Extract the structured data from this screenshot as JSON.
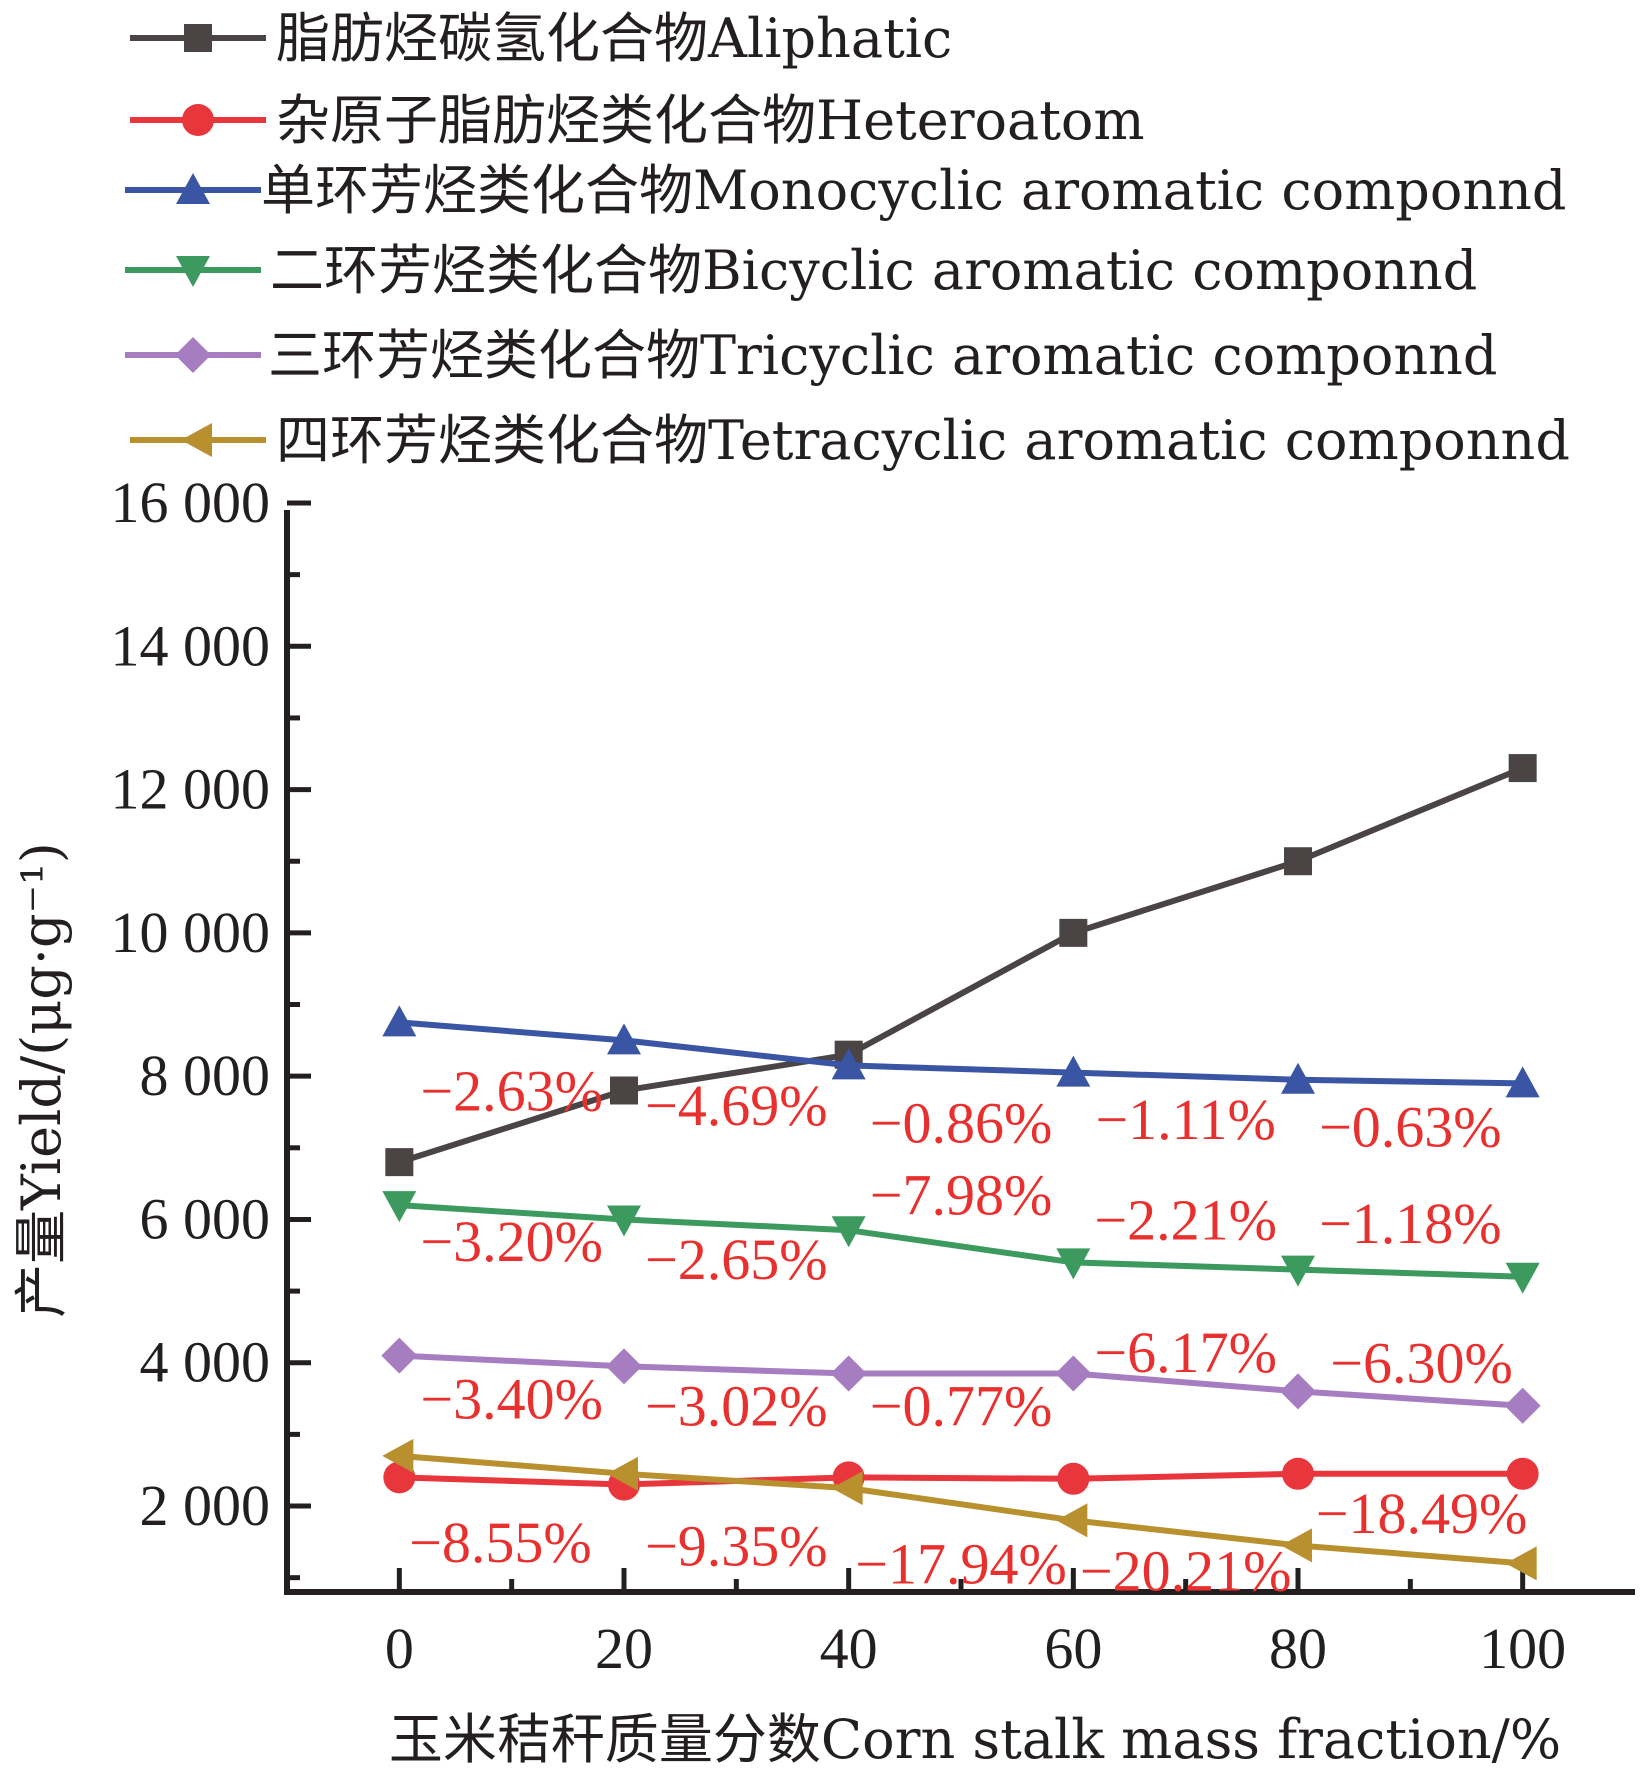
{
  "chart_data": {
    "type": "line",
    "title": "",
    "xlabel": "玉米秸秆质量分数Corn stalk mass fraction/%",
    "ylabel": "产量Yield/(μg·g⁻¹)",
    "x": [
      0,
      20,
      40,
      60,
      80,
      100
    ],
    "x_tick_labels": [
      "0",
      "20",
      "40",
      "60",
      "80",
      "100"
    ],
    "y_ticks": [
      2000,
      4000,
      6000,
      8000,
      10000,
      12000,
      14000,
      16000
    ],
    "y_tick_labels": [
      "2 000",
      "4 000",
      "6 000",
      "8 000",
      "10 000",
      "12 000",
      "14 000",
      "16 000"
    ],
    "xlim": [
      -10,
      110
    ],
    "ylim": [
      800,
      16000
    ],
    "legend_position": "top",
    "series": [
      {
        "name": "脂肪烃碳氢化合物Aliphatic",
        "color": "#4a4444",
        "marker": "square",
        "values": [
          6800,
          7800,
          8300,
          10000,
          11000,
          12300
        ]
      },
      {
        "name": "杂原子脂肪烃类化合物Heteroatom",
        "color": "#e8363c",
        "marker": "circle",
        "values": [
          2400,
          2300,
          2400,
          2380,
          2450,
          2450
        ]
      },
      {
        "name": "单环芳烃类化合物Monocyclic aromatic componnd",
        "color": "#3a55a4",
        "marker": "triangle-up",
        "values": [
          8750,
          8500,
          8150,
          8050,
          7950,
          7900
        ]
      },
      {
        "name": "二环芳烃类化合物Bicyclic aromatic componnd",
        "color": "#3c9a5f",
        "marker": "triangle-down",
        "values": [
          6200,
          6000,
          5850,
          5400,
          5300,
          5200
        ]
      },
      {
        "name": "三环芳烃类化合物Tricyclic aromatic componnd",
        "color": "#a77dc2",
        "marker": "diamond",
        "values": [
          4100,
          3950,
          3850,
          3850,
          3600,
          3400
        ]
      },
      {
        "name": "四环芳烃类化合物Tetracyclic aromatic componnd",
        "color": "#b8902e",
        "marker": "triangle-left",
        "values": [
          2700,
          2450,
          2250,
          1800,
          1450,
          1200
        ]
      }
    ],
    "annotations": [
      {
        "text": "−2.63%",
        "x": 10,
        "y": 7800
      },
      {
        "text": "−4.69%",
        "x": 30,
        "y": 7600
      },
      {
        "text": "−0.86%",
        "x": 50,
        "y": 7350
      },
      {
        "text": "−1.11%",
        "x": 70,
        "y": 7400
      },
      {
        "text": "−0.63%",
        "x": 90,
        "y": 7300
      },
      {
        "text": "−7.98%",
        "x": 50,
        "y": 6350
      },
      {
        "text": "−3.20%",
        "x": 10,
        "y": 5700
      },
      {
        "text": "−2.65%",
        "x": 30,
        "y": 5450
      },
      {
        "text": "−2.21%",
        "x": 70,
        "y": 6000
      },
      {
        "text": "−1.18%",
        "x": 90,
        "y": 5950
      },
      {
        "text": "−6.17%",
        "x": 70,
        "y": 4150
      },
      {
        "text": "−6.30%",
        "x": 91,
        "y": 4000
      },
      {
        "text": "−3.40%",
        "x": 10,
        "y": 3500
      },
      {
        "text": "−3.02%",
        "x": 30,
        "y": 3400
      },
      {
        "text": "−0.77%",
        "x": 50,
        "y": 3400
      },
      {
        "text": "−8.55%",
        "x": 9,
        "y": 1500
      },
      {
        "text": "−9.35%",
        "x": 30,
        "y": 1450
      },
      {
        "text": "−17.94%",
        "x": 50,
        "y": 1200
      },
      {
        "text": "−20.21%",
        "x": 70,
        "y": 1100
      },
      {
        "text": "−18.49%",
        "x": 91,
        "y": 1900
      }
    ]
  }
}
